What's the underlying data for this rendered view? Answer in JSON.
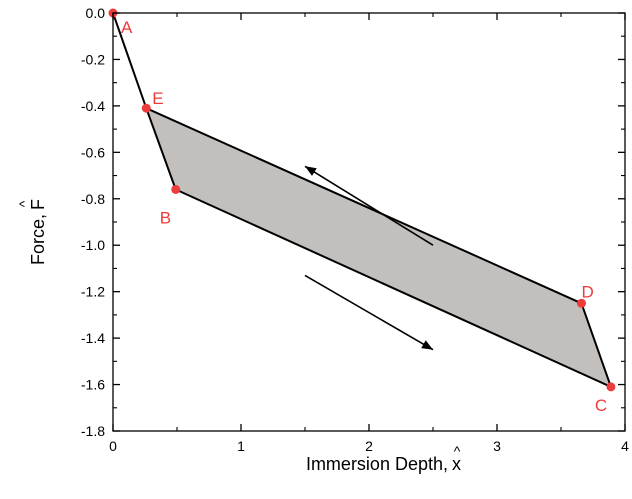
{
  "chart_data": {
    "type": "line",
    "xlabel": "Immersion Depth, x̂",
    "ylabel": "Force, F̂",
    "xlabel_text": "Immersion Depth,",
    "xlabel_var": "x",
    "ylabel_text": "Force,",
    "ylabel_var": "F",
    "hat_symbol": "^",
    "xlim": [
      0,
      4
    ],
    "ylim": [
      -1.8,
      0.0
    ],
    "xticks": [
      0,
      1,
      2,
      3,
      4
    ],
    "yticks": [
      0.0,
      -0.2,
      -0.4,
      -0.6,
      -0.8,
      -1.0,
      -1.2,
      -1.4,
      -1.6,
      -1.8
    ],
    "xtick_labels": [
      "0",
      "1",
      "2",
      "3",
      "4"
    ],
    "ytick_labels": [
      "0.0",
      "-0.2",
      "-0.4",
      "-0.6",
      "-0.8",
      "-1.0",
      "-1.2",
      "-1.4",
      "-1.6",
      "-1.8"
    ],
    "grid": false,
    "points": [
      {
        "label": "A",
        "x": 0.0,
        "y": 0.0
      },
      {
        "label": "E",
        "x": 0.26,
        "y": -0.41
      },
      {
        "label": "B",
        "x": 0.49,
        "y": -0.76
      },
      {
        "label": "D",
        "x": 3.66,
        "y": -1.25
      },
      {
        "label": "C",
        "x": 3.89,
        "y": -1.61
      }
    ],
    "path_order": [
      "A",
      "E",
      "B",
      "C",
      "D",
      "E"
    ],
    "shaded_region": [
      "E",
      "B",
      "C",
      "D"
    ],
    "arrows": [
      {
        "direction": "up-left",
        "from": [
          2.5,
          -1.0
        ],
        "to": [
          1.5,
          -0.66
        ]
      },
      {
        "direction": "down-right",
        "from": [
          1.5,
          -1.13
        ],
        "to": [
          2.5,
          -1.45
        ]
      }
    ],
    "colors": {
      "line": "#000000",
      "fill": "#c3bfbd",
      "points": "#ee3b3b",
      "labels": "#ee3b3b"
    }
  }
}
